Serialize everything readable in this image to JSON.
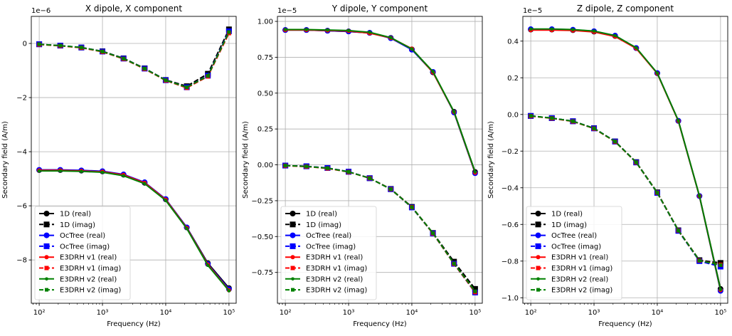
{
  "chart_data": [
    {
      "type": "line",
      "title": "X dipole, X component",
      "xlabel": "Frequency (Hz)",
      "ylabel": "Secondary field (A/m)",
      "xscale": "log",
      "offset_label": "1e−6",
      "xlim": [
        75,
        130000
      ],
      "ylim": [
        -9.6,
        1.0
      ],
      "yticks": [
        0,
        -2,
        -4,
        -6,
        -8
      ],
      "ytick_labels": [
        "0",
        "−2",
        "−4",
        "−6",
        "−8"
      ],
      "xticks": [
        100,
        1000,
        10000,
        100000
      ],
      "xtick_labels": [
        "10²",
        "10³",
        "10⁴",
        "10⁵"
      ],
      "grid": true,
      "legend_position": "lower left",
      "x": [
        100,
        215.4,
        464.2,
        1000,
        2154,
        4642,
        10000,
        21544,
        46416,
        100000
      ],
      "series": [
        {
          "name": "1D (real)",
          "color": "#000000",
          "linestyle": "solid",
          "marker": "circle",
          "values": [
            -4.68,
            -4.68,
            -4.7,
            -4.73,
            -4.85,
            -5.15,
            -5.76,
            -6.8,
            -8.12,
            -9.04
          ]
        },
        {
          "name": "1D (imag)",
          "color": "#000000",
          "linestyle": "dashed",
          "marker": "square",
          "values": [
            -0.03,
            -0.08,
            -0.15,
            -0.29,
            -0.55,
            -0.92,
            -1.35,
            -1.58,
            -1.12,
            0.52
          ]
        },
        {
          "name": "OcTree (real)",
          "color": "#0000ff",
          "linestyle": "solid",
          "marker": "circle",
          "values": [
            -4.67,
            -4.67,
            -4.69,
            -4.72,
            -4.84,
            -5.13,
            -5.75,
            -6.8,
            -8.15,
            -9.08
          ]
        },
        {
          "name": "OcTree (imag)",
          "color": "#0000ff",
          "linestyle": "dashed",
          "marker": "square",
          "values": [
            -0.03,
            -0.08,
            -0.15,
            -0.3,
            -0.56,
            -0.93,
            -1.36,
            -1.62,
            -1.19,
            0.45
          ]
        },
        {
          "name": "E3DRH v1 (real)",
          "color": "#ff0000",
          "linestyle": "solid",
          "marker": "circle-small",
          "values": [
            -4.69,
            -4.69,
            -4.71,
            -4.74,
            -4.86,
            -5.15,
            -5.77,
            -6.82,
            -8.17,
            -9.12
          ]
        },
        {
          "name": "E3DRH v1 (imag)",
          "color": "#ff0000",
          "linestyle": "dashed",
          "marker": "square-small",
          "values": [
            -0.04,
            -0.09,
            -0.16,
            -0.31,
            -0.57,
            -0.94,
            -1.37,
            -1.64,
            -1.22,
            0.38
          ]
        },
        {
          "name": "E3DRH v2 (real)",
          "color": "#008000",
          "linestyle": "solid",
          "marker": "circle-tiny",
          "values": [
            -4.71,
            -4.71,
            -4.73,
            -4.76,
            -4.89,
            -5.18,
            -5.8,
            -6.84,
            -8.2,
            -9.14
          ]
        },
        {
          "name": "E3DRH v2 (imag)",
          "color": "#008000",
          "linestyle": "dashed",
          "marker": "square-tiny",
          "values": [
            -0.03,
            -0.08,
            -0.15,
            -0.3,
            -0.56,
            -0.93,
            -1.36,
            -1.62,
            -1.2,
            0.42
          ]
        }
      ]
    },
    {
      "type": "line",
      "title": "Y dipole, Y component",
      "xlabel": "Frequency (Hz)",
      "ylabel": "Secondary field (A/m)",
      "xscale": "log",
      "offset_label": "1e−5",
      "xlim": [
        75,
        130000
      ],
      "ylim": [
        -0.965,
        1.035
      ],
      "yticks": [
        1.0,
        0.75,
        0.5,
        0.25,
        0.0,
        -0.25,
        -0.5,
        -0.75
      ],
      "ytick_labels": [
        "1.00",
        "0.75",
        "0.50",
        "0.25",
        "0.00",
        "−0.25",
        "−0.50",
        "−0.75"
      ],
      "xticks": [
        100,
        1000,
        10000,
        100000
      ],
      "xtick_labels": [
        "10²",
        "10³",
        "10⁴",
        "10⁵"
      ],
      "grid": true,
      "legend_position": "lower left",
      "x": [
        100,
        215.4,
        464.2,
        1000,
        2154,
        4642,
        10000,
        21544,
        46416,
        100000
      ],
      "series": [
        {
          "name": "1D (real)",
          "color": "#000000",
          "linestyle": "solid",
          "marker": "circle",
          "values": [
            0.94,
            0.94,
            0.935,
            0.93,
            0.92,
            0.885,
            0.805,
            0.645,
            0.37,
            -0.05
          ]
        },
        {
          "name": "1D (imag)",
          "color": "#000000",
          "linestyle": "dashed",
          "marker": "square",
          "values": [
            -0.005,
            -0.01,
            -0.022,
            -0.048,
            -0.093,
            -0.168,
            -0.293,
            -0.475,
            -0.675,
            -0.865
          ]
        },
        {
          "name": "OcTree (real)",
          "color": "#0000ff",
          "linestyle": "solid",
          "marker": "circle",
          "values": [
            0.94,
            0.94,
            0.935,
            0.93,
            0.92,
            0.883,
            0.803,
            0.648,
            0.365,
            -0.058
          ]
        },
        {
          "name": "OcTree (imag)",
          "color": "#0000ff",
          "linestyle": "dashed",
          "marker": "square",
          "values": [
            -0.005,
            -0.01,
            -0.022,
            -0.048,
            -0.093,
            -0.17,
            -0.297,
            -0.478,
            -0.69,
            -0.89
          ]
        },
        {
          "name": "E3DRH v1 (real)",
          "color": "#ff0000",
          "linestyle": "solid",
          "marker": "circle-small",
          "values": [
            0.94,
            0.94,
            0.937,
            0.933,
            0.918,
            0.885,
            0.81,
            0.645,
            0.368,
            -0.055
          ]
        },
        {
          "name": "E3DRH v1 (imag)",
          "color": "#ff0000",
          "linestyle": "dashed",
          "marker": "square-small",
          "values": [
            -0.006,
            -0.012,
            -0.025,
            -0.05,
            -0.093,
            -0.17,
            -0.295,
            -0.478,
            -0.69,
            -0.888
          ]
        },
        {
          "name": "E3DRH v2 (real)",
          "color": "#008000",
          "linestyle": "solid",
          "marker": "circle-tiny",
          "values": [
            0.943,
            0.943,
            0.94,
            0.936,
            0.924,
            0.887,
            0.808,
            0.65,
            0.37,
            -0.05
          ]
        },
        {
          "name": "E3DRH v2 (imag)",
          "color": "#008000",
          "linestyle": "dashed",
          "marker": "square-tiny",
          "values": [
            -0.005,
            -0.011,
            -0.023,
            -0.049,
            -0.093,
            -0.17,
            -0.295,
            -0.476,
            -0.688,
            -0.882
          ]
        }
      ]
    },
    {
      "type": "line",
      "title": "Z dipole, Z component",
      "xlabel": "Frequency (Hz)",
      "ylabel": "Secondary field (A/m)",
      "xscale": "log",
      "offset_label": "1e−5",
      "xlim": [
        75,
        130000
      ],
      "ylim": [
        -1.03,
        0.535
      ],
      "yticks": [
        0.4,
        0.2,
        0.0,
        -0.2,
        -0.4,
        -0.6,
        -0.8,
        -1.0
      ],
      "ytick_labels": [
        "0.4",
        "0.2",
        "0.0",
        "−0.2",
        "−0.4",
        "−0.6",
        "−0.8",
        "−1.0"
      ],
      "xticks": [
        100,
        1000,
        10000,
        100000
      ],
      "xtick_labels": [
        "10²",
        "10³",
        "10⁴",
        "10⁵"
      ],
      "grid": true,
      "legend_position": "lower left",
      "x": [
        100,
        215.4,
        464.2,
        1000,
        2154,
        4642,
        10000,
        21544,
        46416,
        100000
      ],
      "series": [
        {
          "name": "1D (real)",
          "color": "#000000",
          "linestyle": "solid",
          "marker": "circle",
          "values": [
            0.463,
            0.463,
            0.46,
            0.452,
            0.428,
            0.362,
            0.225,
            -0.035,
            -0.445,
            -0.952
          ]
        },
        {
          "name": "1D (imag)",
          "color": "#000000",
          "linestyle": "dashed",
          "marker": "square",
          "values": [
            -0.008,
            -0.02,
            -0.037,
            -0.075,
            -0.147,
            -0.26,
            -0.425,
            -0.632,
            -0.795,
            -0.81
          ]
        },
        {
          "name": "OcTree (real)",
          "color": "#0000ff",
          "linestyle": "solid",
          "marker": "circle",
          "values": [
            0.465,
            0.465,
            0.462,
            0.454,
            0.43,
            0.362,
            0.226,
            -0.035,
            -0.445,
            -0.962
          ]
        },
        {
          "name": "OcTree (imag)",
          "color": "#0000ff",
          "linestyle": "dashed",
          "marker": "square",
          "values": [
            -0.008,
            -0.02,
            -0.037,
            -0.076,
            -0.148,
            -0.262,
            -0.428,
            -0.635,
            -0.8,
            -0.83
          ]
        },
        {
          "name": "E3DRH v1 (real)",
          "color": "#ff0000",
          "linestyle": "solid",
          "marker": "circle-small",
          "values": [
            0.46,
            0.46,
            0.458,
            0.45,
            0.425,
            0.36,
            0.224,
            -0.036,
            -0.445,
            -0.958
          ]
        },
        {
          "name": "E3DRH v1 (imag)",
          "color": "#ff0000",
          "linestyle": "dashed",
          "marker": "square-small",
          "values": [
            -0.009,
            -0.021,
            -0.038,
            -0.077,
            -0.149,
            -0.262,
            -0.427,
            -0.633,
            -0.797,
            -0.82
          ]
        },
        {
          "name": "E3DRH v2 (real)",
          "color": "#008000",
          "linestyle": "solid",
          "marker": "circle-tiny",
          "values": [
            0.466,
            0.466,
            0.463,
            0.455,
            0.43,
            0.364,
            0.226,
            -0.034,
            -0.444,
            -0.955
          ]
        },
        {
          "name": "E3DRH v2 (imag)",
          "color": "#008000",
          "linestyle": "dashed",
          "marker": "square-tiny",
          "values": [
            -0.008,
            -0.02,
            -0.037,
            -0.076,
            -0.148,
            -0.261,
            -0.427,
            -0.633,
            -0.797,
            -0.822
          ]
        }
      ]
    }
  ]
}
